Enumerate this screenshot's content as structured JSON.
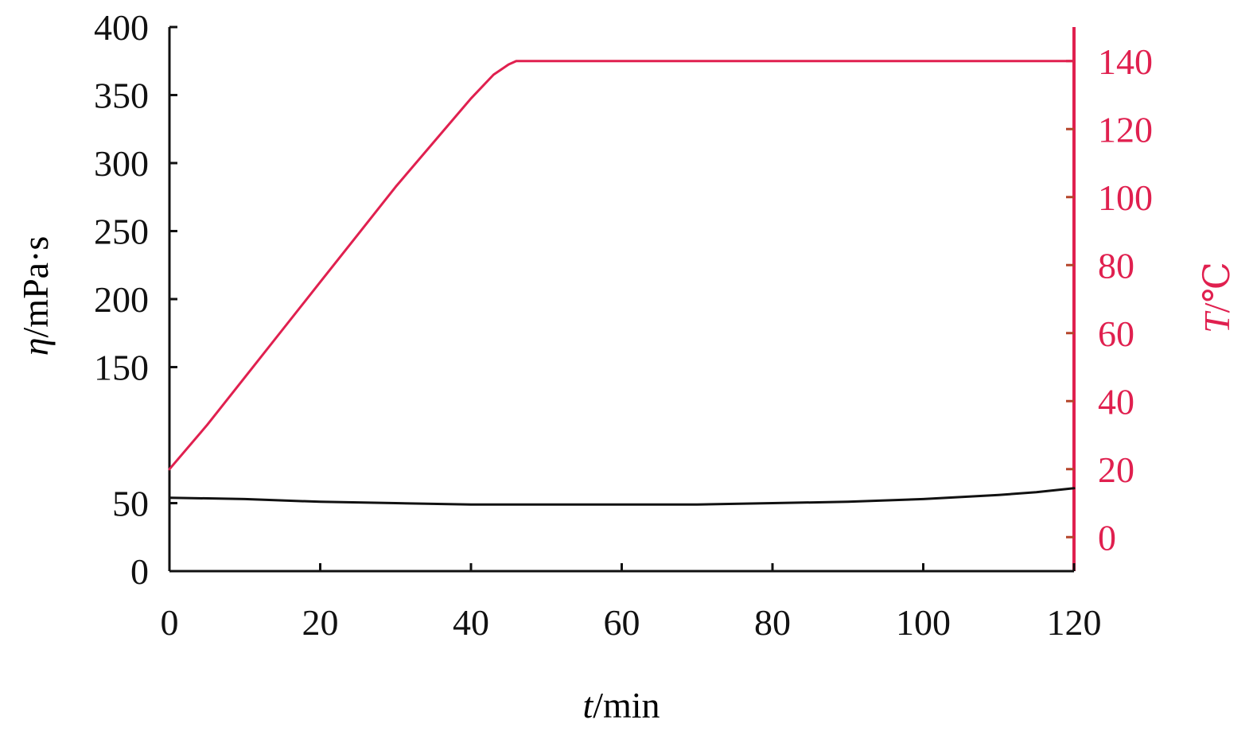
{
  "chart_data": {
    "type": "line",
    "title": "",
    "xlabel": {
      "var": "t",
      "unit": "/min"
    },
    "ylabel_left": {
      "var": "η",
      "unit": "/mPa·s"
    },
    "ylabel_right": {
      "var": "T",
      "unit": "/℃"
    },
    "xlim": [
      0,
      120
    ],
    "ylim_left": [
      0,
      400
    ],
    "ylim_right": [
      -10,
      150
    ],
    "x_ticks": [
      0,
      20,
      40,
      60,
      80,
      100,
      120
    ],
    "y_left_ticks": [
      0,
      50,
      150,
      200,
      250,
      300,
      350,
      400
    ],
    "y_left_tick_labels": [
      "0",
      "50",
      "150",
      "200",
      "250",
      "300",
      "350",
      "400"
    ],
    "y_right_ticks": [
      0,
      20,
      40,
      60,
      80,
      100,
      120,
      140
    ],
    "grid": false,
    "colors": {
      "viscosity": "#111111",
      "temperature": "#e0204f",
      "right_axis": "#e0204f"
    },
    "series": [
      {
        "axis": "left",
        "x": [
          0,
          10,
          20,
          30,
          40,
          50,
          60,
          70,
          80,
          90,
          100,
          110,
          115,
          120
        ],
        "values": [
          54,
          53,
          51,
          50,
          49,
          49,
          49,
          49,
          50,
          51,
          53,
          56,
          58,
          61
        ]
      },
      {
        "axis": "right",
        "x": [
          0,
          5,
          10,
          15,
          20,
          25,
          30,
          35,
          40,
          43,
          45,
          46,
          60,
          80,
          100,
          120
        ],
        "values": [
          20,
          33,
          47,
          61,
          75,
          89,
          103,
          116,
          129,
          136,
          139,
          140,
          140,
          140,
          140,
          140
        ]
      }
    ]
  }
}
